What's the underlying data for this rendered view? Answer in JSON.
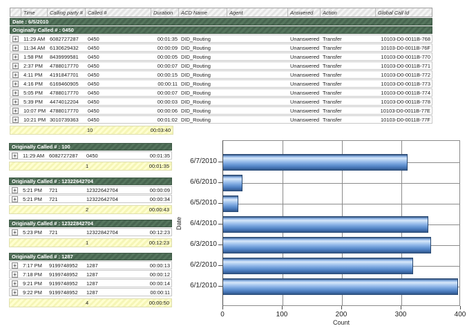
{
  "report": {
    "columns": [
      "",
      "Time",
      "Calling party #",
      "Called #",
      "Duration",
      "ACD Name",
      "Agent",
      "Answered",
      "Action",
      "Global Call Id"
    ],
    "date_label": "Date : 6/5/2010",
    "groups": [
      {
        "header": "Originally Called # : 0450",
        "rows": [
          [
            "11:29 AM",
            "6082727287",
            "0450",
            "00:01:35",
            "DID_Routing",
            "",
            "Unanswered",
            "Transfer",
            "10103-D0-0011B-768"
          ],
          [
            "11:34 AM",
            "6130629432",
            "0450",
            "00:00:09",
            "DID_Routing",
            "",
            "Unanswered",
            "Transfer",
            "10103-D0-0011B-76F"
          ],
          [
            "1:58 PM",
            "8439999581",
            "0450",
            "00:00:05",
            "DID_Routing",
            "",
            "Unanswered",
            "Transfer",
            "10103-D0-0011B-770"
          ],
          [
            "2:37 PM",
            "4788017770",
            "0450",
            "00:00:07",
            "DID_Routing",
            "",
            "Unanswered",
            "Transfer",
            "10103-D0-0011B-771"
          ],
          [
            "4:11 PM",
            "4191847701",
            "0450",
            "00:00:15",
            "DID_Routing",
            "",
            "Unanswered",
            "Transfer",
            "10103-D0-0011B-772"
          ],
          [
            "4:16 PM",
            "6169460905",
            "0450",
            "00:00:11",
            "DID_Routing",
            "",
            "Unanswered",
            "Transfer",
            "10103-D0-0011B-773"
          ],
          [
            "5:05 PM",
            "4788017770",
            "0450",
            "00:00:07",
            "DID_Routing",
            "",
            "Unanswered",
            "Transfer",
            "10103-D0-0011B-774"
          ],
          [
            "5:39 PM",
            "4474012204",
            "0450",
            "00:00:03",
            "DID_Routing",
            "",
            "Unanswered",
            "Transfer",
            "10103-D0-0011B-778"
          ],
          [
            "10:07 PM",
            "4788017770",
            "0450",
            "00:00:06",
            "DID_Routing",
            "",
            "Unanswered",
            "Transfer",
            "10103-D0-0011B-77E"
          ],
          [
            "10:21 PM",
            "3010739363",
            "0450",
            "00:01:02",
            "DID_Routing",
            "",
            "Unanswered",
            "Transfer",
            "10103-D0-0011B-77F"
          ]
        ],
        "summary": {
          "count": "10",
          "total_duration": "00:03:40"
        }
      },
      {
        "header": "Originally Called # : 100",
        "rows": [
          [
            "11:29 AM",
            "6082727287",
            "0450",
            "00:01:35"
          ]
        ],
        "summary": {
          "count": "1",
          "total_duration": "00:01:35"
        }
      },
      {
        "header": "Originally Called # : 12322642704",
        "rows": [
          [
            "5:21 PM",
            "721",
            "12322642704",
            "00:00:09"
          ],
          [
            "5:21 PM",
            "721",
            "12322642704",
            "00:00:34"
          ]
        ],
        "summary": {
          "count": "2",
          "total_duration": "00:00:43"
        }
      },
      {
        "header": "Originally Called # : 12322842704",
        "rows": [
          [
            "5:23 PM",
            "721",
            "12322842704",
            "00:12:23"
          ]
        ],
        "summary": {
          "count": "1",
          "total_duration": "00:12:23"
        }
      },
      {
        "header": "Originally Called # : 1287",
        "rows": [
          [
            "7:17 PM",
            "9199748952",
            "1287",
            "00:00:13"
          ],
          [
            "7:18 PM",
            "9199748952",
            "1287",
            "00:00:12"
          ],
          [
            "9:21 PM",
            "9199748952",
            "1287",
            "00:00:14"
          ],
          [
            "9:22 PM",
            "9199748952",
            "1287",
            "00:00:11"
          ]
        ],
        "summary": {
          "count": "4",
          "total_duration": "00:00:50"
        }
      }
    ]
  },
  "chart_data": {
    "type": "bar",
    "orientation": "horizontal",
    "title": "",
    "categories": [
      "6/7/2010",
      "6/6/2010",
      "6/5/2010",
      "6/4/2010",
      "6/3/2010",
      "6/2/2010",
      "6/1/2010"
    ],
    "values": [
      310,
      33,
      25,
      345,
      350,
      320,
      395
    ],
    "xlabel": "Count",
    "ylabel": "Date",
    "xlim": [
      0,
      400
    ],
    "xticks": [
      0,
      100,
      200,
      300,
      400
    ],
    "grid": true,
    "legend": "none",
    "bar_color": "#5b8fd0"
  },
  "colors": {
    "group_band_green": "#4e6b52",
    "summary_yellow": "#ffffc8",
    "bar_blue": "#5b8fd0",
    "gridline_gray": "#8a8a8a"
  }
}
